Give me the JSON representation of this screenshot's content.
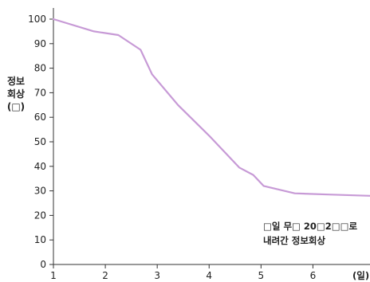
{
  "chart_data": {
    "type": "line",
    "ylabel_lines": [
      "정보",
      "회상",
      "(□)"
    ],
    "xunit": "(일)",
    "annotation_lines": [
      "□일 무□ 20□2□□로",
      "내려간 정보회상"
    ],
    "x_ticks": [
      1,
      2,
      3,
      4,
      5,
      6
    ],
    "y_ticks": [
      0,
      10,
      20,
      30,
      40,
      50,
      60,
      70,
      80,
      90,
      100
    ],
    "xlim": [
      1,
      7.1
    ],
    "ylim": [
      0,
      100
    ],
    "grid": false,
    "series": [
      {
        "color": "#c79ad6",
        "x": [
          1.0,
          1.78,
          2.25,
          2.68,
          2.9,
          3.4,
          4.0,
          4.58,
          4.85,
          5.05,
          5.65,
          6.3,
          7.1
        ],
        "y": [
          100,
          95,
          93.5,
          87.5,
          77.5,
          65,
          52.5,
          39.5,
          36.5,
          32,
          29,
          28.5,
          28
        ]
      }
    ]
  }
}
